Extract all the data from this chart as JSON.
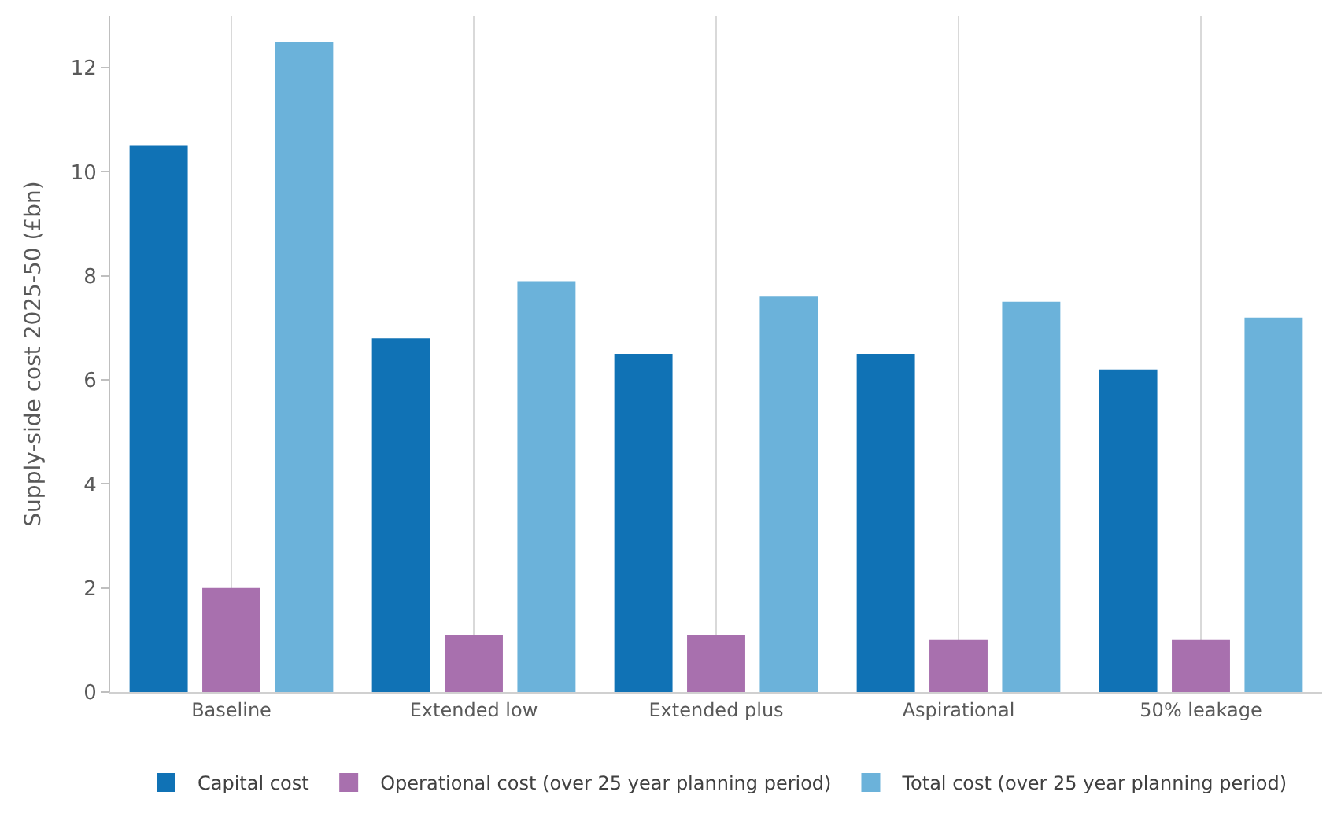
{
  "chart_data": {
    "type": "bar",
    "ylabel": "Supply-side cost 2025-50 (£bn)",
    "categories": [
      "Baseline",
      "Extended low",
      "Extended plus",
      "Aspirational",
      "50% leakage"
    ],
    "series": [
      {
        "name": "Capital cost",
        "color": "#1072b5",
        "values": [
          10.5,
          6.8,
          6.5,
          6.5,
          6.2
        ]
      },
      {
        "name": "Operational cost (over 25 year planning period)",
        "color": "#a870ae",
        "values": [
          2.0,
          1.1,
          1.1,
          1.0,
          1.0
        ]
      },
      {
        "name": "Total cost (over 25 year planning period)",
        "color": "#6bb2da",
        "values": [
          12.5,
          7.9,
          7.6,
          7.5,
          7.2
        ]
      }
    ],
    "ylim": [
      0,
      13
    ],
    "yticks": [
      0,
      2,
      4,
      6,
      8,
      10,
      12
    ],
    "grid": "x",
    "legend": "bottom"
  }
}
